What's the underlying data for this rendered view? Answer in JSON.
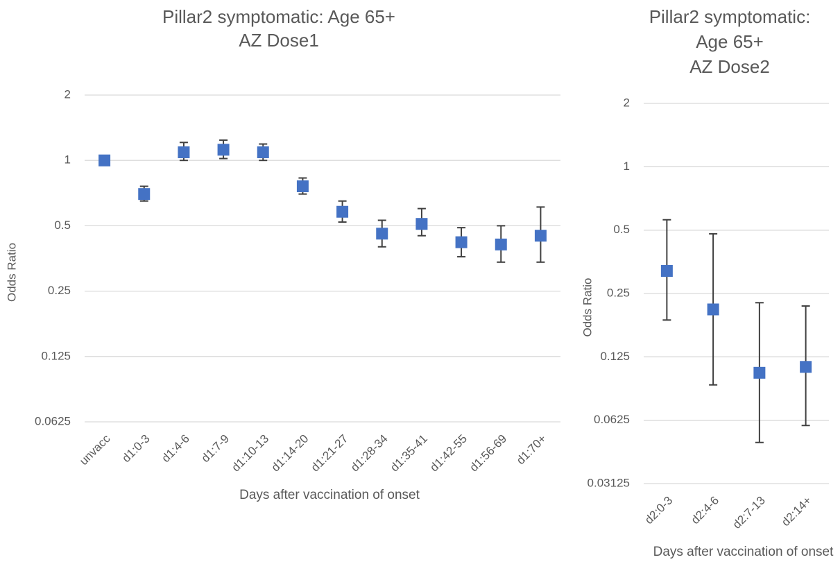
{
  "chart_data": [
    {
      "type": "scatter",
      "title": [
        "Pillar2 symptomatic: Age 65+",
        "AZ Dose1"
      ],
      "x_label": "Days after vaccination of onset",
      "y_label": "Odds Ratio",
      "log_scale": "y",
      "log_base": 2,
      "grid": true,
      "ylim": [
        0.0625,
        2
      ],
      "yticks": [
        0.0625,
        0.125,
        0.25,
        0.5,
        1,
        2
      ],
      "categories": [
        "unvacc",
        "d1:0-3",
        "d1:4-6",
        "d1:7-9",
        "d1:10-13",
        "d1:14-20",
        "d1:21-27",
        "d1:28-34",
        "d1:35-41",
        "d1:42-55",
        "d1:56-69",
        "d1:70+"
      ],
      "color": "#4472c4",
      "values": [
        1.0,
        0.7,
        1.09,
        1.12,
        1.09,
        0.76,
        0.58,
        0.46,
        0.51,
        0.42,
        0.41,
        0.45
      ],
      "lower": [
        1.0,
        0.65,
        1.0,
        1.02,
        1.0,
        0.7,
        0.52,
        0.4,
        0.45,
        0.36,
        0.34,
        0.34
      ],
      "upper": [
        1.0,
        0.76,
        1.21,
        1.24,
        1.19,
        0.83,
        0.65,
        0.53,
        0.6,
        0.49,
        0.5,
        0.61
      ]
    },
    {
      "type": "scatter",
      "title": [
        "Pillar2 symptomatic:",
        "Age 65+",
        "AZ Dose2"
      ],
      "x_label": "Days after vaccination of onset",
      "y_label": "Odds Ratio",
      "log_scale": "y",
      "log_base": 2,
      "grid": true,
      "ylim": [
        0.03125,
        2
      ],
      "yticks": [
        0.03125,
        0.0625,
        0.125,
        0.25,
        0.5,
        1,
        2
      ],
      "categories": [
        "d2:0-3",
        "d2:4-6",
        "d2:7-13",
        "d2:14+"
      ],
      "color": "#4472c4",
      "values": [
        0.32,
        0.21,
        0.105,
        0.112
      ],
      "lower": [
        0.187,
        0.092,
        0.049,
        0.059
      ],
      "upper": [
        0.56,
        0.48,
        0.226,
        0.218
      ]
    }
  ]
}
